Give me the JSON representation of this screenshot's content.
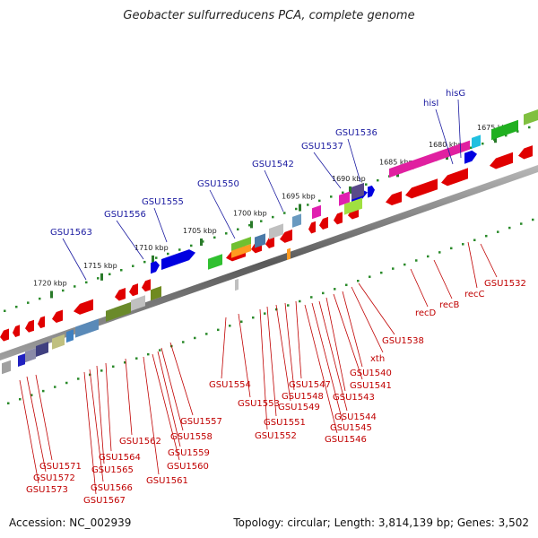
{
  "title": "Geobacter sulfurreducens PCA, complete genome",
  "footer": {
    "accession": "Accession: NC_002939",
    "topology": "Topology: circular; Length: 3,814,139 bp; Genes: 3,502"
  },
  "scale_ticks": [
    "1675 kbp",
    "1680 kbp",
    "1685 kbp",
    "1690 kbp",
    "1695 kbp",
    "1700 kbp",
    "1705 kbp",
    "1710 kbp",
    "1715 kbp",
    "1720 kbp"
  ],
  "top_labels": [
    "hisG",
    "hisI",
    "GSU1536",
    "GSU1537",
    "GSU1542",
    "GSU1550",
    "GSU1555",
    "GSU1556",
    "GSU1563"
  ],
  "bottom_labels": [
    "GSU1532",
    "recC",
    "recB",
    "recD",
    "GSU1538",
    "xth",
    "GSU1540",
    "GSU1541",
    "GSU1543",
    "GSU1544",
    "GSU1545",
    "GSU1546",
    "GSU1547",
    "GSU1548",
    "GSU1549",
    "GSU1551",
    "GSU1552",
    "GSU1553",
    "GSU1554",
    "GSU1557",
    "GSU1558",
    "GSU1559",
    "GSU1560",
    "GSU1561",
    "GSU1562",
    "GSU1564",
    "GSU1565",
    "GSU1566",
    "GSU1567",
    "GSU1571",
    "GSU1572",
    "GSU1573"
  ],
  "colors": {
    "forward": "#e00000",
    "reverse": "#0000e0",
    "top_label": "#1a1aa0",
    "bottom_label": "#c00000",
    "scale_dots": "#2a8a2a",
    "backbone": "#7a7a7a"
  }
}
